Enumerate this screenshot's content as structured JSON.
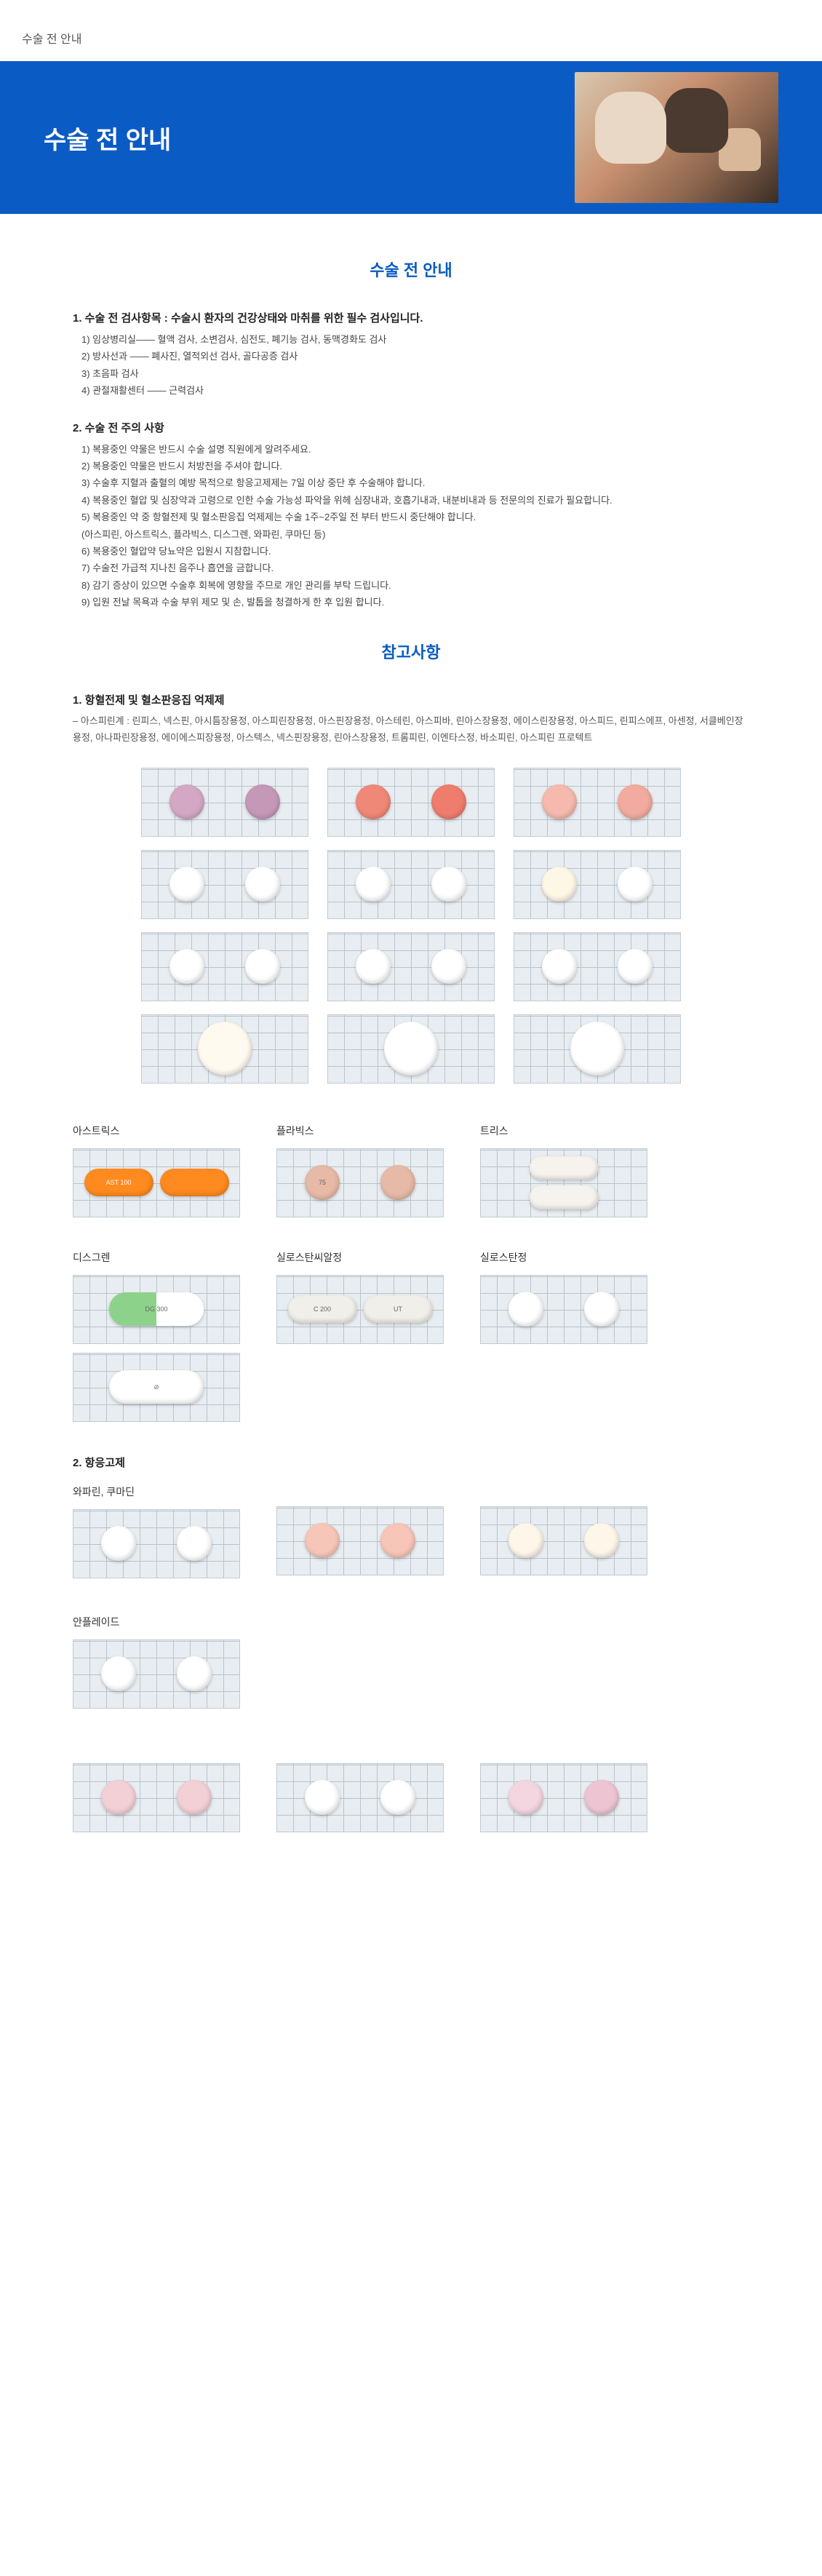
{
  "breadcrumb": "수술 전 안내",
  "hero": {
    "title": "수술 전 안내"
  },
  "sectionA_title": "수술 전 안내",
  "groupA_heading": "1. 수술 전 검사항목 : 수술시 환자의 건강상태와 마취를 위한 필수 검사입니다.",
  "groupA_items": [
    "1) 임상병리실—— 혈액 검사, 소변검사, 심전도,  폐기능 검사, 동맥경화도 검사",
    "2) 방사선과 —— 폐사진, 열적외선 검사, 골다공증 검사",
    "3) 초음파 검사",
    "4) 관절재활센터 —— 근력검사"
  ],
  "groupB_heading": "2. 수술 전 주의 사항",
  "groupB_items": [
    "1) 복용중인  약물은 반드시 수술 설명 직원에게 알려주세요.",
    "2) 복용중인 약물은 반드시 처방전을 주셔야 합니다.",
    "3) 수술후 지혈과 출혈의 예방 목적으로  항응고제제는 7일 이상 중단 후 수술해야 합니다.",
    "4) 복용중인 혈압 및 심장약과 고령으로 인한  수술 가능성 파악을 위헤 심장내과, 호흡기내과, 내분비내과 등 전문의의 진료가 필요합니다.",
    "5) 복용중인 약 중 항혈전제 및 혈소판응집 억제제는 수술 1주~2주일 전 부터 반드시 중단해야 합니다.",
    "    (아스피린, 아스트릭스,  플라빅스, 디스그렌, 와파린, 쿠마딘 등)",
    "6) 복용중인 혈압약 당뇨약은 입원시 지참합니다.",
    "7) 수술전 가급적 지나친 음주나 흡연을 금합니다.",
    "8) 감기 증상이 있으면 수술후 회복에 영향을 주므로 개인 관리를  부탁 드립니다.",
    "9) 입원 전날 목욕과 수술 부위 제모 및 손, 발톱을 청결하게 한 후 입원 합니다."
  ],
  "sectionB_title": "참고사항",
  "anti_heading": "1. 항혈전제 및 혈소판응집 억제제",
  "anti_note": "– 아스피린계 : 린피스, 넥스핀, 아시틈장용정, 아스피린장용정, 아스핀장용정, 아스테린, 아스피바,  린아스장용정, 에이스린장용정, 아스피드, 린피스에프, 아센정, 서클베인장용정,  아나파린장용정, 에이에스피장용정, 아스텍스, 넥스핀장용정, 린아스장용정, 트롬피린,  이엔타스정, 바소피린, 아스피린 프로텍트",
  "grid1": [
    {
      "pills": [
        {
          "cls": "small",
          "bg": "#d4a8c5",
          "txt": ""
        },
        {
          "cls": "small",
          "bg": "#c598b8",
          "txt": ""
        }
      ]
    },
    {
      "pills": [
        {
          "cls": "small",
          "bg": "#f08878",
          "txt": ""
        },
        {
          "cls": "small",
          "bg": "#ef7d6e",
          "txt": ""
        }
      ]
    },
    {
      "pills": [
        {
          "cls": "small",
          "bg": "#f5b9ad",
          "txt": ""
        },
        {
          "cls": "small",
          "bg": "#f2ab9e",
          "txt": ""
        }
      ]
    },
    {
      "pills": [
        {
          "cls": "small",
          "bg": "#ffffff",
          "txt": ""
        },
        {
          "cls": "small",
          "bg": "#ffffff",
          "txt": ""
        }
      ]
    },
    {
      "pills": [
        {
          "cls": "small",
          "bg": "#ffffff",
          "txt": ""
        },
        {
          "cls": "small",
          "bg": "#ffffff",
          "txt": ""
        }
      ]
    },
    {
      "pills": [
        {
          "cls": "small",
          "bg": "#fff7e6",
          "txt": ""
        },
        {
          "cls": "small",
          "bg": "#ffffff",
          "txt": ""
        }
      ]
    },
    {
      "pills": [
        {
          "cls": "small",
          "bg": "#ffffff",
          "txt": ""
        },
        {
          "cls": "small",
          "bg": "#ffffff",
          "txt": ""
        }
      ]
    },
    {
      "pills": [
        {
          "cls": "small",
          "bg": "#ffffff",
          "txt": ""
        },
        {
          "cls": "small",
          "bg": "#ffffff",
          "txt": ""
        }
      ]
    },
    {
      "pills": [
        {
          "cls": "small",
          "bg": "#ffffff",
          "txt": ""
        },
        {
          "cls": "small",
          "bg": "#ffffff",
          "txt": ""
        }
      ]
    },
    {
      "pills": [
        {
          "cls": "big",
          "bg": "#fefaf0",
          "txt": ""
        }
      ]
    },
    {
      "pills": [
        {
          "cls": "big",
          "bg": "#ffffff",
          "txt": ""
        }
      ]
    },
    {
      "pills": [
        {
          "cls": "big",
          "bg": "#ffffff",
          "txt": ""
        }
      ]
    }
  ],
  "named1": [
    {
      "label": "아스트릭스",
      "cards": [
        {
          "pills": [
            {
              "cls": "capsule small",
              "bg": "#ff8a1f",
              "txt": "AST 100",
              "txtcolor": "#fff"
            },
            {
              "cls": "capsule small",
              "bg": "#ff8a1f",
              "txt": "",
              "txtcolor": "#fff"
            }
          ]
        }
      ]
    },
    {
      "label": "플라빅스",
      "cards": [
        {
          "pills": [
            {
              "cls": "small",
              "bg": "#e7b9a7",
              "txt": "75"
            },
            {
              "cls": "small",
              "bg": "#e7b9a7",
              "txt": ""
            }
          ]
        }
      ]
    },
    {
      "label": "트리스",
      "cards": [
        {
          "pills": [
            {
              "cls": "capsule small",
              "bg": "#f6f3ee",
              "txt": ""
            },
            {
              "cls": "capsule small",
              "bg": "#f6f3ee",
              "txt": ""
            }
          ],
          "stack": true
        }
      ]
    }
  ],
  "named2": [
    {
      "label": "디스그렌",
      "cards": [
        {
          "pills": [
            {
              "cls": "capsule med",
              "bg": "",
              "half": [
                "#8cd28a",
                "#ffffff"
              ],
              "txt": "DG 300"
            }
          ]
        },
        {
          "pills": [
            {
              "cls": "capsule med",
              "bg": "#ffffff",
              "txt": "⊘"
            }
          ]
        }
      ]
    },
    {
      "label": "실로스탄씨알정",
      "cards": [
        {
          "pills": [
            {
              "cls": "capsule small",
              "bg": "#f1efe9",
              "txt": "C 200"
            },
            {
              "cls": "capsule small",
              "bg": "#f1efe9",
              "txt": "UT"
            }
          ]
        }
      ]
    },
    {
      "label": "실로스탄정",
      "cards": [
        {
          "pills": [
            {
              "cls": "small",
              "bg": "#ffffff",
              "txt": ""
            },
            {
              "cls": "small",
              "bg": "#ffffff",
              "txt": ""
            }
          ]
        }
      ]
    }
  ],
  "sec2_heading": "2. 항응고제",
  "named3": [
    {
      "label": "와파린, 쿠마딘",
      "cards": [
        {
          "pills": [
            {
              "cls": "small",
              "bg": "#ffffff",
              "txt": ""
            },
            {
              "cls": "small",
              "bg": "#ffffff",
              "txt": ""
            }
          ]
        }
      ]
    },
    {
      "label": "",
      "cards": [
        {
          "pills": [
            {
              "cls": "small",
              "bg": "#f7c6b8",
              "txt": ""
            },
            {
              "cls": "small",
              "bg": "#f7c6b8",
              "txt": ""
            }
          ]
        }
      ]
    },
    {
      "label": "",
      "cards": [
        {
          "pills": [
            {
              "cls": "small",
              "bg": "#fff6ea",
              "txt": ""
            },
            {
              "cls": "small",
              "bg": "#fff6ea",
              "txt": ""
            }
          ]
        }
      ]
    },
    {
      "label": "안플레이드",
      "cards": [
        {
          "pills": [
            {
              "cls": "small",
              "bg": "#ffffff",
              "txt": ""
            },
            {
              "cls": "small",
              "bg": "#ffffff",
              "txt": ""
            }
          ]
        }
      ]
    }
  ],
  "named4": [
    {
      "label": "",
      "cards": [
        {
          "pills": [
            {
              "cls": "small",
              "bg": "#f3d0d6",
              "txt": ""
            },
            {
              "cls": "small",
              "bg": "#f3d0d6",
              "txt": ""
            }
          ]
        }
      ]
    },
    {
      "label": "",
      "cards": [
        {
          "pills": [
            {
              "cls": "small",
              "bg": "#ffffff",
              "txt": ""
            },
            {
              "cls": "small",
              "bg": "#ffffff",
              "txt": ""
            }
          ]
        }
      ]
    },
    {
      "label": "",
      "cards": [
        {
          "pills": [
            {
              "cls": "small",
              "bg": "#f4d6e0",
              "txt": ""
            },
            {
              "cls": "small",
              "bg": "#ecc4d2",
              "txt": ""
            }
          ]
        }
      ]
    }
  ],
  "colors": {
    "brand": "#0a5bc4",
    "grid_line": "#b8c3cb",
    "grid_bg": "#e8edf1"
  }
}
